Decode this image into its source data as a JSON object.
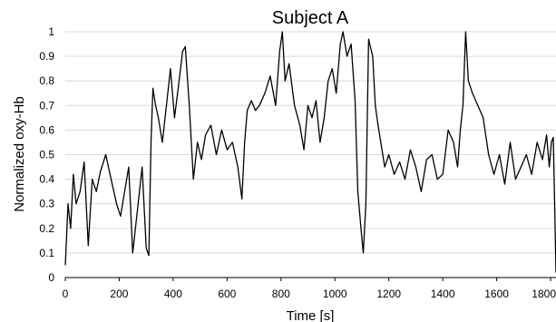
{
  "chart_data": {
    "type": "line",
    "title": "Subject A",
    "xlabel": "Time [s]",
    "ylabel": "Normalized oxy-Hb",
    "xlim": [
      0,
      1820
    ],
    "ylim": [
      0,
      1
    ],
    "xticks": [
      "0",
      "200",
      "400",
      "600",
      "800",
      "1000",
      "1200",
      "1400",
      "1600",
      "1800"
    ],
    "yticks": [
      "0",
      "0.1",
      "0.2",
      "0.3",
      "0.4",
      "0.5",
      "0.6",
      "0.7",
      "0.8",
      "0.9",
      "1"
    ],
    "grid": true,
    "series": [
      {
        "x": [
          0,
          10,
          20,
          30,
          40,
          55,
          70,
          85,
          100,
          115,
          130,
          150,
          170,
          190,
          205,
          220,
          235,
          250,
          270,
          285,
          300,
          310,
          318,
          325,
          335,
          345,
          360,
          375,
          390,
          405,
          420,
          435,
          445,
          460,
          475,
          490,
          505,
          520,
          540,
          560,
          580,
          600,
          620,
          640,
          655,
          665,
          675,
          690,
          705,
          720,
          740,
          760,
          780,
          795,
          805,
          815,
          830,
          850,
          870,
          885,
          900,
          915,
          930,
          945,
          960,
          975,
          990,
          1005,
          1020,
          1030,
          1045,
          1060,
          1075,
          1085,
          1095,
          1105,
          1115,
          1125,
          1140,
          1150,
          1160,
          1170,
          1185,
          1200,
          1220,
          1240,
          1260,
          1280,
          1300,
          1320,
          1340,
          1360,
          1380,
          1400,
          1420,
          1440,
          1455,
          1465,
          1475,
          1485,
          1495,
          1510,
          1530,
          1550,
          1570,
          1590,
          1610,
          1630,
          1650,
          1670,
          1690,
          1710,
          1730,
          1750,
          1770,
          1785,
          1795,
          1803,
          1810,
          1815,
          1820
        ],
        "y": [
          0.05,
          0.3,
          0.2,
          0.42,
          0.3,
          0.35,
          0.47,
          0.13,
          0.4,
          0.35,
          0.43,
          0.5,
          0.4,
          0.3,
          0.25,
          0.35,
          0.45,
          0.1,
          0.3,
          0.45,
          0.12,
          0.09,
          0.55,
          0.77,
          0.7,
          0.65,
          0.55,
          0.7,
          0.85,
          0.65,
          0.78,
          0.92,
          0.94,
          0.7,
          0.4,
          0.55,
          0.48,
          0.58,
          0.62,
          0.5,
          0.6,
          0.52,
          0.55,
          0.45,
          0.32,
          0.55,
          0.68,
          0.72,
          0.68,
          0.7,
          0.75,
          0.82,
          0.7,
          0.92,
          1.0,
          0.8,
          0.87,
          0.7,
          0.62,
          0.52,
          0.7,
          0.65,
          0.72,
          0.55,
          0.65,
          0.8,
          0.85,
          0.75,
          0.95,
          1.0,
          0.9,
          0.95,
          0.72,
          0.35,
          0.22,
          0.1,
          0.3,
          0.97,
          0.9,
          0.7,
          0.62,
          0.55,
          0.45,
          0.5,
          0.42,
          0.47,
          0.4,
          0.52,
          0.45,
          0.35,
          0.48,
          0.5,
          0.4,
          0.42,
          0.6,
          0.55,
          0.45,
          0.6,
          0.7,
          1.0,
          0.8,
          0.75,
          0.7,
          0.65,
          0.5,
          0.42,
          0.5,
          0.38,
          0.55,
          0.4,
          0.45,
          0.5,
          0.42,
          0.55,
          0.48,
          0.58,
          0.45,
          0.55,
          0.57,
          0.3,
          0.02
        ]
      }
    ]
  }
}
